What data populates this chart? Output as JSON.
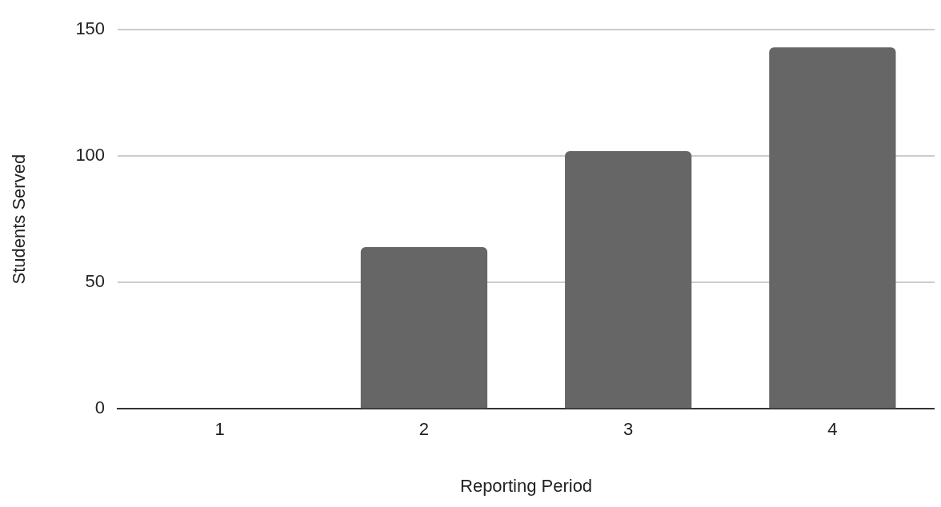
{
  "chart_data": {
    "type": "bar",
    "xlabel": "Reporting Period",
    "ylabel": "Students Served",
    "categories": [
      "1",
      "2",
      "3",
      "4"
    ],
    "values": [
      0,
      64,
      102,
      143
    ],
    "color": "#666666",
    "ylim": [
      0,
      150
    ],
    "yticks": [
      0,
      50,
      100,
      150
    ],
    "grid": "y"
  }
}
